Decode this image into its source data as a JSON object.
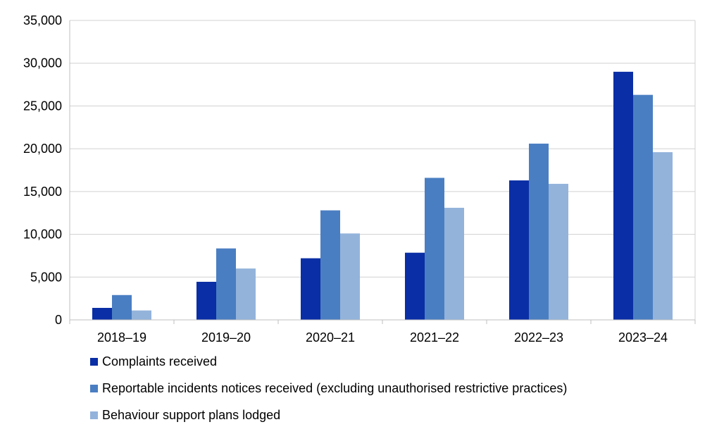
{
  "chart_data": {
    "type": "bar",
    "title": "",
    "xlabel": "",
    "ylabel": "",
    "ylim": [
      0,
      35000
    ],
    "yticks": [
      0,
      5000,
      10000,
      15000,
      20000,
      25000,
      30000,
      35000
    ],
    "ytick_labels": [
      "0",
      "5,000",
      "10,000",
      "15,000",
      "20,000",
      "25,000",
      "30,000",
      "35,000"
    ],
    "grid": true,
    "legend_position": "bottom",
    "categories": [
      "2018–19",
      "2019–20",
      "2020–21",
      "2021–22",
      "2022–23",
      "2023–24"
    ],
    "series": [
      {
        "name": "Complaints received",
        "color": "#0a2ea5",
        "values": [
          1400,
          4450,
          7200,
          7850,
          16300,
          29000
        ]
      },
      {
        "name": "Reportable incidents notices received (excluding unauthorised restrictive practices)",
        "color": "#4a7ec2",
        "values": [
          2900,
          8350,
          12800,
          16600,
          20600,
          26300
        ]
      },
      {
        "name": "Behaviour support plans lodged",
        "color": "#93b3db",
        "values": [
          1100,
          6000,
          10100,
          13100,
          15900,
          19600
        ]
      }
    ]
  }
}
